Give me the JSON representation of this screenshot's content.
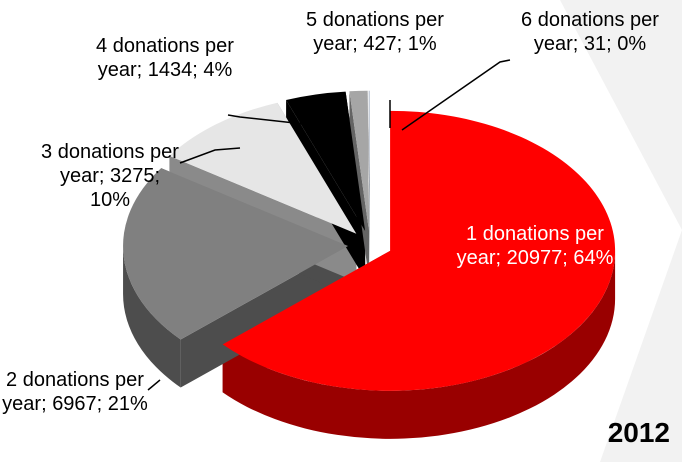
{
  "chart_data": {
    "type": "pie3d",
    "title": "2012",
    "categories": [
      "1 donations per year;",
      "2 donations per year;",
      "3 donations per year;",
      "4 donations per year;",
      "5 donations per year;",
      "6 donations per year;"
    ],
    "values": [
      20977,
      6967,
      3275,
      1434,
      427,
      31
    ],
    "value_labels": [
      "20977; 64%",
      "6967; 21%",
      "3275; 10%",
      "1434; 4%",
      "427; 1%",
      "31; 0%"
    ],
    "colors": [
      "#ff0000",
      "#808080",
      "#e6e6e6",
      "#000000",
      "#a6a6a6",
      "#c3cad6"
    ]
  }
}
